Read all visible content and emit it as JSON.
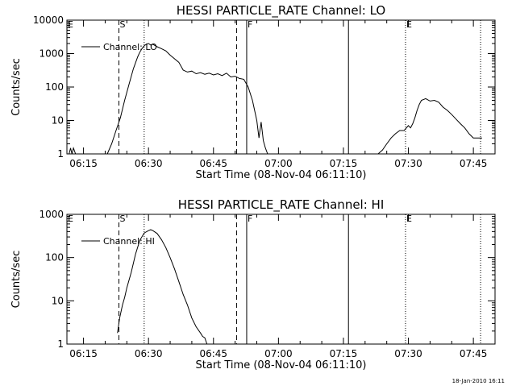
{
  "footer": {
    "timestamp": "18-Jan-2010 16:11"
  },
  "chart_data": [
    {
      "type": "line",
      "title": "HESSI PARTICLE_RATE Channel: LO",
      "xlabel": "Start Time (08-Nov-04 06:11:10)",
      "ylabel": "Counts/sec",
      "yscale": "log",
      "xlim": [
        "06:11:10",
        "07:50:00"
      ],
      "ylim": [
        1,
        10000
      ],
      "xticks": [
        "06:15",
        "06:30",
        "06:45",
        "07:00",
        "07:15",
        "07:30",
        "07:45"
      ],
      "yticks": [
        "1",
        "10",
        "100",
        "1000",
        "10000"
      ],
      "legend": {
        "position": "top-left",
        "entries": [
          "Channel: LO"
        ]
      },
      "series": [
        {
          "name": "Channel: LO",
          "segments": [
            {
              "t": [
                "06:11:40",
                "06:12:00",
                "06:12:20",
                "06:12:40",
                "06:13:10"
              ],
              "y": [
                1,
                1.5,
                1,
                1.5,
                1
              ]
            },
            {
              "t": [
                "06:20:30",
                "06:21:30",
                "06:22:30",
                "06:23:30",
                "06:24:30",
                "06:25:30",
                "06:26:30",
                "06:27:30",
                "06:28:00",
                "06:28:30",
                "06:29:00",
                "06:29:30",
                "06:30:00",
                "06:30:30",
                "06:31:00",
                "06:32:00",
                "06:33:00",
                "06:34:00",
                "06:35:00",
                "06:36:00",
                "06:37:00",
                "06:38:00",
                "06:39:00",
                "06:40:00",
                "06:41:00",
                "06:42:00",
                "06:43:00",
                "06:44:00",
                "06:45:00",
                "06:46:00",
                "06:47:00",
                "06:48:00",
                "06:49:00",
                "06:50:00",
                "06:51:00",
                "06:52:00",
                "06:53:00",
                "06:54:00",
                "06:55:00",
                "06:55:30",
                "06:56:00",
                "06:56:30",
                "06:57:00",
                "06:57:30"
              ],
              "y": [
                1,
                2,
                5,
                12,
                40,
                120,
                350,
                800,
                1100,
                1400,
                1700,
                1900,
                2000,
                1800,
                1900,
                1600,
                1400,
                1200,
                900,
                700,
                550,
                320,
                280,
                300,
                250,
                270,
                240,
                260,
                230,
                250,
                220,
                260,
                200,
                210,
                180,
                170,
                100,
                40,
                10,
                3,
                9,
                2.5,
                1.5,
                1
              ]
            },
            {
              "t": [
                "07:23:00",
                "07:24:00",
                "07:25:00",
                "07:26:00",
                "07:27:00",
                "07:28:00",
                "07:29:00",
                "07:30:00",
                "07:30:30",
                "07:31:00",
                "07:31:30",
                "07:32:00",
                "07:32:30",
                "07:33:00",
                "07:34:00",
                "07:35:00",
                "07:36:00",
                "07:37:00",
                "07:38:00",
                "07:39:00",
                "07:40:00",
                "07:41:00",
                "07:42:00",
                "07:43:00",
                "07:44:00",
                "07:45:00",
                "07:46:00",
                "07:47:00"
              ],
              "y": [
                1,
                1.3,
                2,
                3,
                4,
                5,
                5,
                7,
                6,
                8,
                12,
                20,
                30,
                40,
                45,
                38,
                40,
                35,
                25,
                20,
                15,
                11,
                8,
                6,
                4,
                3,
                3,
                3
              ]
            }
          ]
        }
      ],
      "markers": [
        {
          "label": "S",
          "t": "06:23:10",
          "style": "dashed"
        },
        {
          "label": "",
          "t": "06:29:00",
          "style": "dotted"
        },
        {
          "label": "",
          "t": "06:50:20",
          "style": "dashed"
        },
        {
          "label": "F",
          "t": "06:52:40",
          "style": "solid"
        },
        {
          "label": "",
          "t": "07:16:10",
          "style": "solid"
        },
        {
          "label": "E",
          "t": "07:29:20",
          "style": "dotted"
        },
        {
          "label": "",
          "t": "07:46:40",
          "style": "dotted"
        }
      ],
      "corner_label": "E"
    },
    {
      "type": "line",
      "title": "HESSI PARTICLE_RATE Channel: HI",
      "xlabel": "Start Time (08-Nov-04 06:11:10)",
      "ylabel": "Counts/sec",
      "yscale": "log",
      "xlim": [
        "06:11:10",
        "07:50:00"
      ],
      "ylim": [
        1,
        1000
      ],
      "xticks": [
        "06:15",
        "06:30",
        "06:45",
        "07:00",
        "07:15",
        "07:30",
        "07:45"
      ],
      "yticks": [
        "1",
        "10",
        "100",
        "1000"
      ],
      "legend": {
        "position": "top-left",
        "entries": [
          "Channel: HI"
        ]
      },
      "series": [
        {
          "name": "Channel: HI",
          "segments": [
            {
              "t": [
                "06:22:50",
                "06:23:20",
                "06:24:00",
                "06:24:30",
                "06:25:00",
                "06:26:00",
                "06:27:00",
                "06:28:00",
                "06:29:00",
                "06:30:00",
                "06:30:30",
                "06:31:00",
                "06:32:00",
                "06:33:00",
                "06:34:00",
                "06:35:00",
                "06:36:00",
                "06:37:00",
                "06:38:00",
                "06:39:00",
                "06:40:00",
                "06:41:00",
                "06:42:00",
                "06:42:30",
                "06:43:00",
                "06:43:30"
              ],
              "y": [
                1.8,
                4,
                8,
                12,
                20,
                45,
                120,
                250,
                370,
                420,
                440,
                420,
                360,
                260,
                170,
                100,
                55,
                28,
                14,
                8,
                4,
                2.5,
                1.8,
                1.5,
                1.4,
                1
              ]
            }
          ]
        }
      ],
      "markers": [
        {
          "label": "S",
          "t": "06:23:10",
          "style": "dashed"
        },
        {
          "label": "",
          "t": "06:29:00",
          "style": "dotted"
        },
        {
          "label": "",
          "t": "06:50:20",
          "style": "dashed"
        },
        {
          "label": "F",
          "t": "06:52:40",
          "style": "solid"
        },
        {
          "label": "",
          "t": "07:16:10",
          "style": "solid"
        },
        {
          "label": "E",
          "t": "07:29:20",
          "style": "dotted"
        },
        {
          "label": "",
          "t": "07:46:40",
          "style": "dotted"
        }
      ],
      "corner_label": "E"
    }
  ]
}
